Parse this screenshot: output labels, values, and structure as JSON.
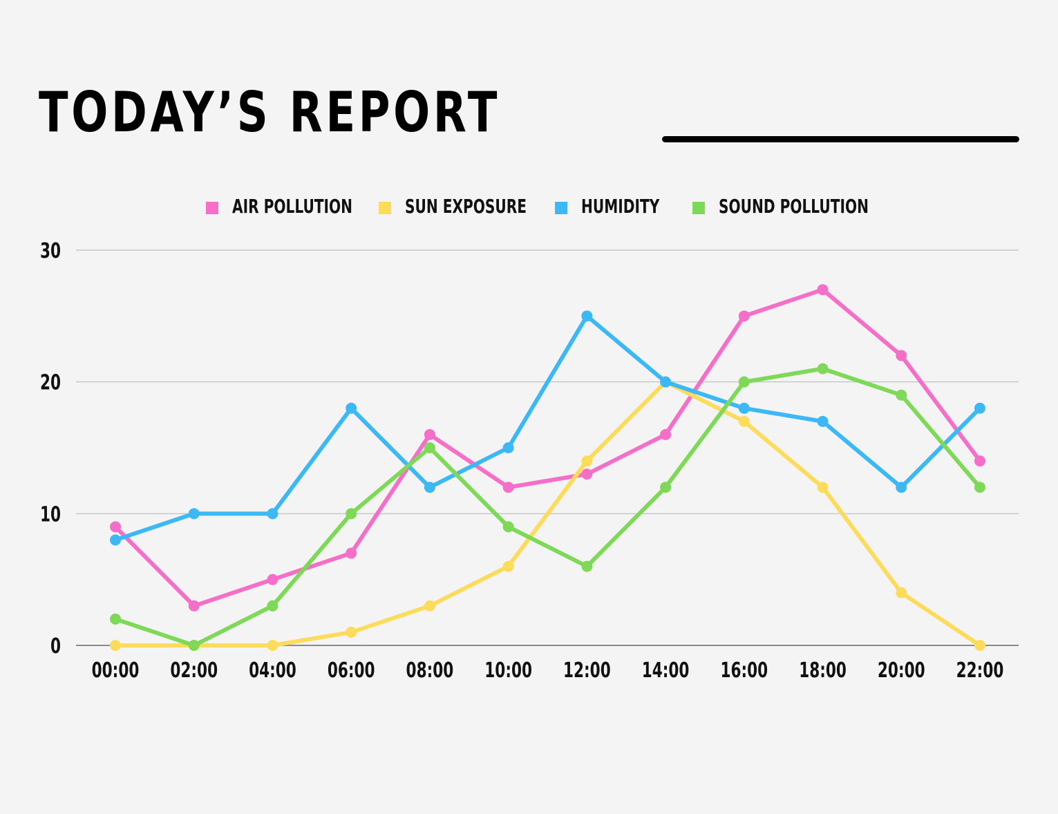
{
  "header": {
    "title": "TODAY’S REPORT"
  },
  "chart_data": {
    "type": "line",
    "title": "",
    "xlabel": "",
    "ylabel": "",
    "x": [
      "00:00",
      "02:00",
      "04:00",
      "06:00",
      "08:00",
      "10:00",
      "12:00",
      "14:00",
      "16:00",
      "18:00",
      "20:00",
      "22:00"
    ],
    "ylim": [
      0,
      30
    ],
    "yticks": [
      0,
      10,
      20,
      30
    ],
    "grid": true,
    "legend_position": "top-center",
    "series": [
      {
        "name": "AIR POLLUTION",
        "color": "#f56fc8",
        "values": [
          9,
          3,
          5,
          7,
          16,
          12,
          13,
          16,
          25,
          27,
          22,
          14
        ]
      },
      {
        "name": "SUN EXPOSURE",
        "color": "#fddc5c",
        "values": [
          0,
          0,
          0,
          1,
          3,
          6,
          14,
          20,
          17,
          12,
          4,
          0
        ]
      },
      {
        "name": "HUMIDITY",
        "color": "#3cb8f5",
        "values": [
          8,
          10,
          10,
          18,
          12,
          15,
          25,
          20,
          18,
          17,
          12,
          18
        ]
      },
      {
        "name": "SOUND POLLUTION",
        "color": "#7dd957",
        "values": [
          2,
          0,
          3,
          10,
          15,
          9,
          6,
          12,
          20,
          21,
          19,
          12
        ]
      }
    ]
  }
}
